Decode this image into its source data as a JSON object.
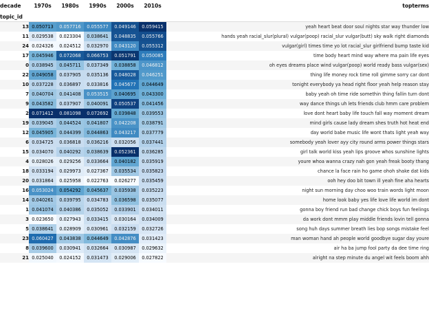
{
  "table": {
    "corner_label": "decade",
    "index_label": "topic_id",
    "columns": [
      "1970s",
      "1980s",
      "1990s",
      "2000s",
      "2010s"
    ],
    "terms_header": "topterms",
    "rows": [
      {
        "id": "13",
        "values": [
          "0.050713",
          "0.057716",
          "0.055577",
          "0.049146",
          "0.059415"
        ],
        "terms": "yeah heart beat door soul nights star way thunder low"
      },
      {
        "id": "11",
        "values": [
          "0.029538",
          "0.023304",
          "0.038641",
          "0.048835",
          "0.055766"
        ],
        "terms": "hands yeah racial_slur(plural) vulgar(poop) racial_slur vulgar(butt) sky walk right diamonds"
      },
      {
        "id": "24",
        "values": [
          "0.024326",
          "0.024512",
          "0.032970",
          "0.043120",
          "0.055312"
        ],
        "terms": "vulgar(girl) times time yo lot racial_slur girlfriend bump taste kid"
      },
      {
        "id": "17",
        "values": [
          "0.045946",
          "0.072068",
          "0.066753",
          "0.051791",
          "0.050085"
        ],
        "terms": "time body heart mind way where ma pain life eyes"
      },
      {
        "id": "0",
        "values": [
          "0.038945",
          "0.045711",
          "0.037349",
          "0.038858",
          "0.046812"
        ],
        "terms": "oh eyes dreams place wind vulgar(poop) world ready bass vulgar(sex)"
      },
      {
        "id": "22",
        "values": [
          "0.049058",
          "0.037905",
          "0.035136",
          "0.048028",
          "0.046251"
        ],
        "terms": "thing life money rock time roll gimme sorry car dont"
      },
      {
        "id": "10",
        "values": [
          "0.037228",
          "0.036897",
          "0.033816",
          "0.045677",
          "0.044649"
        ],
        "terms": "tonight everybody ya head right floor yeah help reason stay"
      },
      {
        "id": "7",
        "values": [
          "0.040704",
          "0.041408",
          "0.053515",
          "0.040695",
          "0.043300"
        ],
        "terms": "baby yeah oh time ride somethin thing fallin turn dont"
      },
      {
        "id": "9",
        "values": [
          "0.043582",
          "0.037907",
          "0.040091",
          "0.050537",
          "0.041456"
        ],
        "terms": "way dance things uh lets friends club hmm care problem"
      },
      {
        "id": "2",
        "values": [
          "0.071412",
          "0.081098",
          "0.072692",
          "0.039848",
          "0.039553"
        ],
        "terms": "love dont heart baby life touch fall way moment dream"
      },
      {
        "id": "19",
        "values": [
          "0.039045",
          "0.044524",
          "0.041807",
          "0.042208",
          "0.038791"
        ],
        "terms": "mind girls cause lady dream shes truth hot heat end"
      },
      {
        "id": "12",
        "values": [
          "0.045905",
          "0.044399",
          "0.044863",
          "0.043217",
          "0.037779"
        ],
        "terms": "day world babe music life wont thats light yeah way"
      },
      {
        "id": "6",
        "values": [
          "0.034725",
          "0.036818",
          "0.036216",
          "0.032056",
          "0.037441"
        ],
        "terms": "somebody yeah lover ayy city round arms power things stars"
      },
      {
        "id": "15",
        "values": [
          "0.034070",
          "0.040292",
          "0.038639",
          "0.052361",
          "0.036285"
        ],
        "terms": "girl talk world kiss yeah lips groove whos sunshine lights"
      },
      {
        "id": "4",
        "values": [
          "0.028026",
          "0.029256",
          "0.033664",
          "0.040182",
          "0.035919"
        ],
        "terms": "youre whoa wanna crazy nah gon yeah freak booty thang"
      },
      {
        "id": "18",
        "values": [
          "0.033194",
          "0.029973",
          "0.027367",
          "0.035534",
          "0.035823"
        ],
        "terms": "chance la face rain ho game ohoh shake dat kids"
      },
      {
        "id": "20",
        "values": [
          "0.031864",
          "0.025958",
          "0.022763",
          "0.026277",
          "0.035459"
        ],
        "terms": "ooh hey doo bit town ill yeah fine aha hearts"
      },
      {
        "id": "16",
        "values": [
          "0.053024",
          "0.054292",
          "0.045637",
          "0.035938",
          "0.035223"
        ],
        "terms": "night sun morning day choo woo train words light moon"
      },
      {
        "id": "14",
        "values": [
          "0.040261",
          "0.039795",
          "0.034783",
          "0.036598",
          "0.035077"
        ],
        "terms": "home look baby yes life love life world im dont"
      },
      {
        "id": "1",
        "values": [
          "0.041074",
          "0.040386",
          "0.035052",
          "0.033901",
          "0.034011"
        ],
        "terms": "gonna boy friend run bad change chick boys fun feelings"
      },
      {
        "id": "3",
        "values": [
          "0.023650",
          "0.027943",
          "0.033415",
          "0.030164",
          "0.034009"
        ],
        "terms": "da work dont mmm play middle friends lovin tell gonna"
      },
      {
        "id": "5",
        "values": [
          "0.038641",
          "0.028909",
          "0.030961",
          "0.032159",
          "0.032726"
        ],
        "terms": "song huh days summer breath lies bop songs mistake feel"
      },
      {
        "id": "23",
        "values": [
          "0.060427",
          "0.043838",
          "0.044649",
          "0.042876",
          "0.031423"
        ],
        "terms": "man woman hand ah people world goodbye sugar day youre"
      },
      {
        "id": "8",
        "values": [
          "0.039600",
          "0.030941",
          "0.032664",
          "0.030987",
          "0.029632"
        ],
        "terms": "air ha ba jump fool party da dee time ring"
      },
      {
        "id": "21",
        "values": [
          "0.025040",
          "0.024152",
          "0.031473",
          "0.029006",
          "0.027822"
        ],
        "terms": "alright na step minute du angel wit feels boom ahh"
      }
    ]
  },
  "colors": {
    "gradient_low": "#f7fbff",
    "gradient_high": "#08306b"
  }
}
